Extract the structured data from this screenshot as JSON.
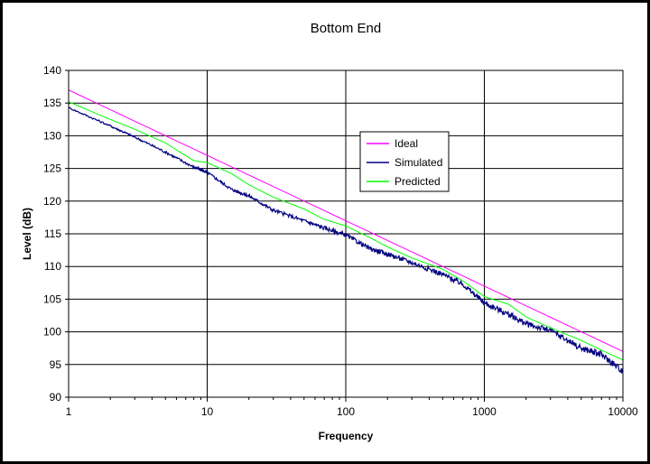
{
  "chart_data": {
    "type": "line",
    "title": "Bottom End",
    "xlabel": "Frequency",
    "ylabel": "Level (dB)",
    "x_scale": "log",
    "xlim": [
      1,
      10000
    ],
    "ylim": [
      90,
      140
    ],
    "x_ticks": [
      "1",
      "10",
      "100",
      "1000",
      "10000"
    ],
    "y_ticks": [
      "90",
      "95",
      "100",
      "105",
      "110",
      "115",
      "120",
      "125",
      "130",
      "135",
      "140"
    ],
    "grid": true,
    "legend_position": "center-right",
    "series": [
      {
        "name": "Ideal",
        "color": "#ff00ff",
        "x": [
          1,
          10,
          100,
          1000,
          10000
        ],
        "y": [
          137,
          127,
          117,
          107,
          97
        ]
      },
      {
        "name": "Simulated",
        "color": "#000080",
        "x": [
          1,
          2,
          3,
          5,
          8,
          10,
          15,
          20,
          30,
          50,
          70,
          100,
          150,
          200,
          300,
          500,
          700,
          1000,
          1500,
          2000,
          3000,
          5000,
          7000,
          10000
        ],
        "y": [
          134.3,
          131.5,
          129.8,
          127.5,
          125.2,
          124.4,
          121.8,
          120.8,
          118.6,
          117.0,
          115.9,
          114.8,
          112.7,
          111.9,
          110.6,
          108.8,
          107.3,
          104.4,
          102.7,
          101.2,
          100.2,
          97.5,
          96.5,
          94.0
        ]
      },
      {
        "name": "Predicted",
        "color": "#00ff00",
        "x": [
          1,
          2,
          3,
          5,
          8,
          10,
          15,
          20,
          30,
          50,
          70,
          100,
          150,
          200,
          300,
          500,
          700,
          1000,
          1500,
          2000,
          3000,
          5000,
          7000,
          10000
        ],
        "y": [
          135.2,
          132.5,
          131.0,
          128.9,
          126.2,
          125.9,
          124.2,
          122.5,
          120.6,
          118.8,
          117.2,
          116.2,
          114.4,
          113.0,
          111.3,
          109.6,
          107.8,
          105.4,
          104.2,
          102.3,
          100.6,
          98.7,
          97.2,
          95.7
        ]
      }
    ]
  }
}
